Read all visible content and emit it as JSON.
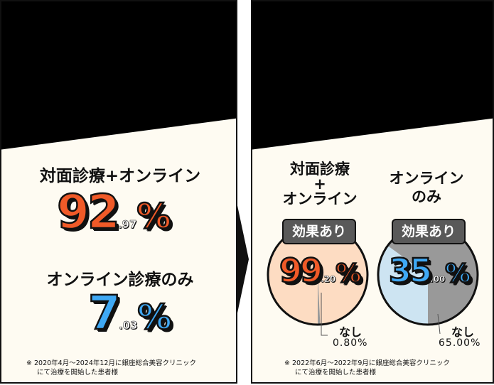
{
  "left_panel": {
    "heading1": "対面診療+オンライン",
    "value1_int": "92",
    "value1_dec": ".97",
    "value1_unit": "%",
    "heading2": "オンライン診療のみ",
    "value2_int": "7",
    "value2_dec": ".03",
    "value2_unit": "%",
    "note_line1": "※ 2020年4月～2024年12月に銀座総合美容クリニック",
    "note_line2": "にて治療を開始した患者様"
  },
  "right_panel": {
    "pie1": {
      "title_line1": "対面診療",
      "title_line2": "+",
      "title_line3": "オンライン",
      "badge": "効果あり",
      "value_int": "99",
      "value_dec": ".20",
      "value_unit": "%",
      "none_label": "なし",
      "none_value": "0.80%",
      "effective_percent": 99.2,
      "color_effective": "#fddcc2"
    },
    "pie2": {
      "title_line1": "オンライン",
      "title_line2": "のみ",
      "badge": "効果あり",
      "value_int": "35",
      "value_dec": ".00",
      "value_unit": "%",
      "none_label": "なし",
      "none_value": "65.00%",
      "effective_percent": 35.0,
      "color_effective": "#cde4f2",
      "color_none": "#999999"
    },
    "note_line1": "※ 2022年6月～2022年9月に銀座総合美容クリニック",
    "note_line2": "にて治療を開始した患者様"
  },
  "colors": {
    "orange": "#f05a28",
    "blue": "#3fa9f5",
    "background": "#fefbf2",
    "badge": "#595959"
  }
}
